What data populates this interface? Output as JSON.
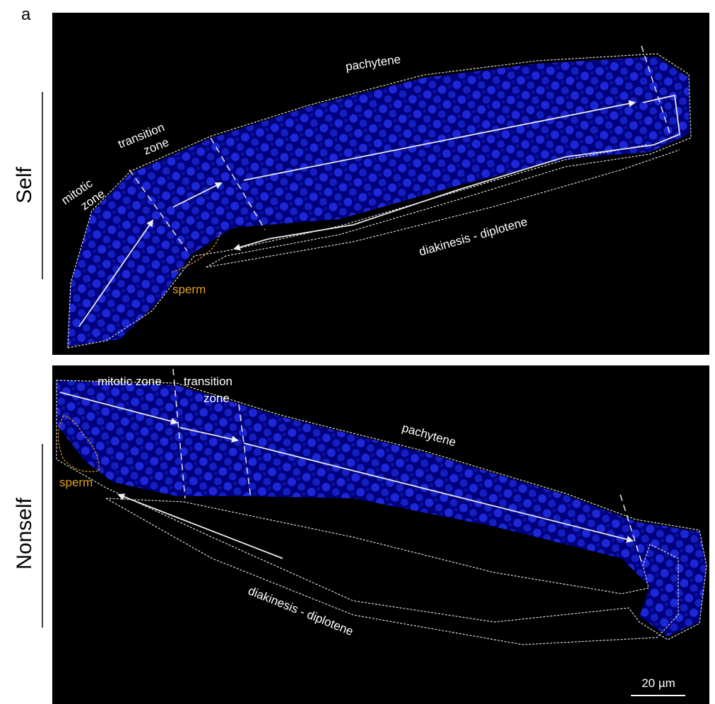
{
  "figure_label": "a",
  "panels": [
    {
      "row_label": "Self",
      "mitotic_zone": [
        "mitotic",
        "zone"
      ],
      "transition_zone": [
        "transition",
        "zone"
      ],
      "pachytene": "pachytene",
      "sperm": "sperm",
      "diakinesis": "diakinesis - diplotene"
    },
    {
      "row_label": "Nonself",
      "mitotic_zone": [
        "mitotic zone"
      ],
      "transition_zone": [
        "transition",
        "zone"
      ],
      "pachytene": "pachytene",
      "sperm": "sperm",
      "diakinesis": "diakinesis - diplotene",
      "scale_bar": "20 µm"
    }
  ]
}
